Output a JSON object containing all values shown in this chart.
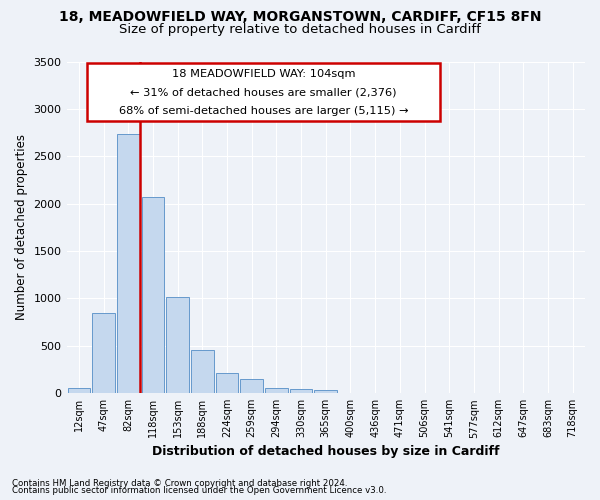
{
  "title_line1": "18, MEADOWFIELD WAY, MORGANSTOWN, CARDIFF, CF15 8FN",
  "title_line2": "Size of property relative to detached houses in Cardiff",
  "xlabel": "Distribution of detached houses by size in Cardiff",
  "ylabel": "Number of detached properties",
  "footnote1": "Contains HM Land Registry data © Crown copyright and database right 2024.",
  "footnote2": "Contains public sector information licensed under the Open Government Licence v3.0.",
  "annotation_title": "18 MEADOWFIELD WAY: 104sqm",
  "annotation_line2": "← 31% of detached houses are smaller (2,376)",
  "annotation_line3": "68% of semi-detached houses are larger (5,115) →",
  "bar_color": "#c5d8ee",
  "bar_edge_color": "#6699cc",
  "vline_color": "#cc0000",
  "vline_x_index": 2,
  "categories": [
    "12sqm",
    "47sqm",
    "82sqm",
    "118sqm",
    "153sqm",
    "188sqm",
    "224sqm",
    "259sqm",
    "294sqm",
    "330sqm",
    "365sqm",
    "400sqm",
    "436sqm",
    "471sqm",
    "506sqm",
    "541sqm",
    "577sqm",
    "612sqm",
    "647sqm",
    "683sqm",
    "718sqm"
  ],
  "values": [
    55,
    850,
    2730,
    2075,
    1020,
    460,
    215,
    145,
    60,
    45,
    30,
    0,
    0,
    0,
    0,
    0,
    0,
    0,
    0,
    0,
    0
  ],
  "ylim": [
    0,
    3500
  ],
  "yticks": [
    0,
    500,
    1000,
    1500,
    2000,
    2500,
    3000,
    3500
  ],
  "background_color": "#eef2f8",
  "grid_color": "#ffffff",
  "box_color": "#cc0000",
  "title_fontsize": 10,
  "subtitle_fontsize": 9.5
}
